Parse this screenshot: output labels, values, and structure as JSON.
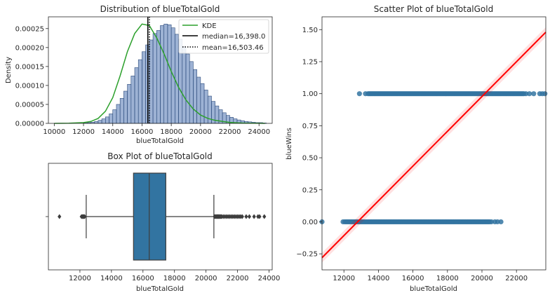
{
  "chart_data": [
    {
      "type": "histogram",
      "title": "Distribution of blueTotalGold",
      "xlabel": "blueTotalGold",
      "ylabel": "Density",
      "xlim": [
        9600,
        24900
      ],
      "ylim": [
        0,
        0.000281
      ],
      "xticks": [
        10000,
        12000,
        14000,
        16000,
        18000,
        20000,
        22000,
        24000
      ],
      "xtick_labels": [
        "10000",
        "12000",
        "14000",
        "16000",
        "18000",
        "20000",
        "22000",
        "24000"
      ],
      "yticks": [
        0,
        5e-05,
        0.0001,
        0.00015,
        0.0002,
        0.00025
      ],
      "ytick_labels": [
        "0.00000",
        "0.00005",
        "0.00010",
        "0.00015",
        "0.00020",
        "0.00025"
      ],
      "bins": {
        "start": 12000,
        "width": 250,
        "densities": [
          1e-06,
          2e-06,
          3e-06,
          5e-06,
          8e-06,
          1.2e-05,
          1.7e-05,
          2.5e-05,
          3.6e-05,
          5e-05,
          6.6e-05,
          8.5e-05,
          0.000103,
          0.000125,
          0.000147,
          0.000168,
          0.000189,
          0.000207,
          0.00022,
          0.000237,
          0.000245,
          0.000258,
          0.000262,
          0.00026,
          0.000252,
          0.000235,
          0.000222,
          0.000203,
          0.000183,
          0.000163,
          0.000142,
          0.000122,
          0.000105,
          8.8e-05,
          7.2e-05,
          5.8e-05,
          4.6e-05,
          3.6e-05,
          2.8e-05,
          2.1e-05,
          1.6e-05,
          1.2e-05,
          9e-06,
          7e-06,
          5e-06,
          4e-06,
          3e-06,
          2e-06,
          2e-06,
          1e-06
        ]
      },
      "kde": {
        "name": "KDE",
        "x": [
          10000,
          11000,
          12000,
          12500,
          13000,
          13500,
          14000,
          14500,
          15000,
          15500,
          16000,
          16500,
          17000,
          17500,
          18000,
          18500,
          19000,
          19500,
          20000,
          20500,
          21000,
          21500,
          22000,
          22500,
          23000,
          23500,
          24000,
          24400
        ],
        "y": [
          0,
          5e-07,
          2e-06,
          5e-06,
          1.3e-05,
          3.2e-05,
          6.8e-05,
          0.000125,
          0.000189,
          0.000237,
          0.000262,
          0.000258,
          0.000226,
          0.000184,
          0.000137,
          9.5e-05,
          6.2e-05,
          3.8e-05,
          2.2e-05,
          1.3e-05,
          8e-06,
          5e-06,
          2.5e-06,
          1.5e-06,
          8e-07,
          4e-07,
          2e-07,
          0
        ]
      },
      "median": {
        "label": "median=16,398.0",
        "value": 16398.0
      },
      "mean": {
        "label": "mean=16,503.46",
        "value": 16503.46
      },
      "legend_position": "top-right",
      "colors": {
        "bars": "#4c72b0",
        "kde": "#2ca02c",
        "median": "#000000",
        "mean": "#000000"
      }
    },
    {
      "type": "box",
      "title": "Box Plot of blueTotalGold",
      "xlabel": "blueTotalGold",
      "xlim": [
        10000,
        24200
      ],
      "xticks": [
        12000,
        14000,
        16000,
        18000,
        20000,
        22000,
        24000
      ],
      "xtick_labels": [
        "12000",
        "14000",
        "16000",
        "18000",
        "20000",
        "22000",
        "24000"
      ],
      "q1": 15400,
      "median": 16398,
      "q3": 17450,
      "whisker_low": 12400,
      "whisker_high": 20500,
      "outliers": [
        10700,
        12100,
        12150,
        12200,
        12250,
        12300,
        20550,
        20600,
        20650,
        20700,
        20750,
        20800,
        20850,
        20900,
        20950,
        21000,
        21100,
        21200,
        21300,
        21400,
        21500,
        21600,
        21700,
        21800,
        21900,
        22000,
        22100,
        22200,
        22300,
        22550,
        22750,
        23050,
        23300,
        23400,
        23700
      ],
      "color": "#3274a1"
    },
    {
      "type": "scatter",
      "title": "Scatter Plot of blueTotalGold",
      "xlabel": "blueTotalGold",
      "ylabel": "blueWins",
      "xlim": [
        10730,
        23700
      ],
      "ylim": [
        -0.375,
        1.6
      ],
      "xticks": [
        12000,
        14000,
        16000,
        18000,
        20000,
        22000
      ],
      "xtick_labels": [
        "12000",
        "14000",
        "16000",
        "18000",
        "20000",
        "22000"
      ],
      "yticks": [
        -0.25,
        0,
        0.25,
        0.5,
        0.75,
        1,
        1.25,
        1.5
      ],
      "ytick_labels": [
        "−0.25",
        "0.00",
        "0.25",
        "0.50",
        "0.75",
        "1.00",
        "1.25",
        "1.50"
      ],
      "series": [
        {
          "y": 1,
          "x_range": [
            13400,
            22450
          ],
          "extra_x": [
            12900,
            13250,
            22550,
            22750,
            23000,
            23350,
            23500,
            23650
          ]
        },
        {
          "y": 0,
          "x_range": [
            12050,
            20450
          ],
          "extra_x": [
            10730,
            11950,
            20550,
            20750,
            20900,
            21100
          ]
        }
      ],
      "regression": {
        "x": [
          10730,
          23700
        ],
        "y": [
          -0.28,
          1.48
        ]
      },
      "colors": {
        "points": "#3274a1",
        "line": "#ff0000"
      }
    }
  ]
}
